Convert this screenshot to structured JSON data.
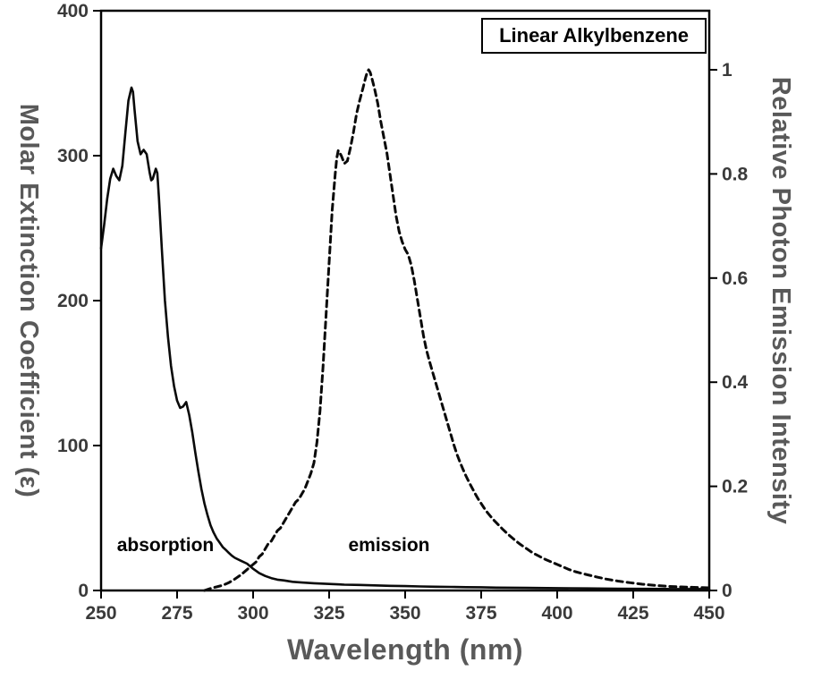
{
  "chart_data": {
    "type": "line",
    "title_box": "Linear Alkylbenzene",
    "xlabel": "Wavelength (nm)",
    "ylabel_left": "Molar Extinction Coefficient (ε)",
    "ylabel_right": "Relative Photon Emission Intensity",
    "xlim": [
      250,
      450
    ],
    "ylim_left": [
      0,
      400
    ],
    "ylim_right": [
      0,
      1
    ],
    "x_ticks": [
      250,
      275,
      300,
      325,
      350,
      375,
      400,
      425,
      450
    ],
    "y_ticks_left": [
      0,
      100,
      200,
      300,
      400
    ],
    "y_ticks_right": [
      0,
      0.2,
      0.4,
      0.6,
      0.8,
      1
    ],
    "grid": "off",
    "legend_position": "top-right-inside",
    "annotations": [
      {
        "text": "absorption"
      },
      {
        "text": "emission"
      }
    ],
    "colors": {
      "line": "#0a0a0a",
      "axis_title": "#595959",
      "tick_label": "#3a3a3a",
      "border": "#000000"
    },
    "series": [
      {
        "name": "absorption",
        "axis": "left",
        "style": "solid",
        "points": [
          [
            250,
            236
          ],
          [
            251,
            252
          ],
          [
            252,
            270
          ],
          [
            253,
            284
          ],
          [
            254,
            291
          ],
          [
            255,
            286
          ],
          [
            256,
            283
          ],
          [
            257,
            293
          ],
          [
            258,
            316
          ],
          [
            259,
            338
          ],
          [
            260,
            347
          ],
          [
            260.5,
            344
          ],
          [
            261,
            332
          ],
          [
            262,
            310
          ],
          [
            263,
            301
          ],
          [
            264,
            304
          ],
          [
            265,
            301
          ],
          [
            266,
            288
          ],
          [
            266.5,
            283
          ],
          [
            267,
            284
          ],
          [
            268,
            291
          ],
          [
            268.5,
            288
          ],
          [
            269,
            272
          ],
          [
            270,
            235
          ],
          [
            271,
            200
          ],
          [
            272,
            175
          ],
          [
            273,
            155
          ],
          [
            274,
            141
          ],
          [
            275,
            131
          ],
          [
            276,
            126
          ],
          [
            277,
            127
          ],
          [
            278,
            130
          ],
          [
            279,
            121
          ],
          [
            280,
            109
          ],
          [
            281,
            95
          ],
          [
            282,
            82
          ],
          [
            283,
            70
          ],
          [
            284,
            60
          ],
          [
            285,
            52
          ],
          [
            286,
            45
          ],
          [
            287,
            40
          ],
          [
            288,
            36
          ],
          [
            289,
            33
          ],
          [
            290,
            30
          ],
          [
            291,
            28
          ],
          [
            292,
            26
          ],
          [
            293,
            24
          ],
          [
            294,
            22.5
          ],
          [
            296,
            20.5
          ],
          [
            298,
            18.5
          ],
          [
            300,
            15
          ],
          [
            302,
            12
          ],
          [
            304,
            10
          ],
          [
            306,
            8.5
          ],
          [
            308,
            7.5
          ],
          [
            310,
            7
          ],
          [
            313,
            6
          ],
          [
            316,
            5.5
          ],
          [
            320,
            5
          ],
          [
            325,
            4.5
          ],
          [
            330,
            4
          ],
          [
            335,
            3.8
          ],
          [
            340,
            3.5
          ],
          [
            345,
            3.2
          ],
          [
            350,
            3
          ],
          [
            355,
            2.8
          ],
          [
            360,
            2.6
          ],
          [
            365,
            2.5
          ],
          [
            370,
            2.3
          ],
          [
            375,
            2.2
          ],
          [
            380,
            2
          ],
          [
            390,
            1.8
          ],
          [
            400,
            1.6
          ],
          [
            410,
            1.4
          ],
          [
            420,
            1.2
          ],
          [
            430,
            1.1
          ],
          [
            440,
            1
          ],
          [
            450,
            1
          ]
        ]
      },
      {
        "name": "emission",
        "axis": "right",
        "style": "dashed",
        "points": [
          [
            284,
            0
          ],
          [
            286,
            0.004
          ],
          [
            288,
            0.007
          ],
          [
            290,
            0.01
          ],
          [
            292,
            0.015
          ],
          [
            294,
            0.022
          ],
          [
            296,
            0.03
          ],
          [
            298,
            0.04
          ],
          [
            300,
            0.05
          ],
          [
            301,
            0.055
          ],
          [
            302,
            0.065
          ],
          [
            303,
            0.07
          ],
          [
            304,
            0.08
          ],
          [
            305,
            0.09
          ],
          [
            306,
            0.095
          ],
          [
            307,
            0.105
          ],
          [
            308,
            0.115
          ],
          [
            309,
            0.12
          ],
          [
            310,
            0.13
          ],
          [
            311,
            0.14
          ],
          [
            312,
            0.15
          ],
          [
            313,
            0.16
          ],
          [
            314,
            0.17
          ],
          [
            315,
            0.175
          ],
          [
            316,
            0.185
          ],
          [
            317,
            0.195
          ],
          [
            318,
            0.21
          ],
          [
            319,
            0.225
          ],
          [
            320,
            0.245
          ],
          [
            321,
            0.285
          ],
          [
            322,
            0.345
          ],
          [
            323,
            0.43
          ],
          [
            324,
            0.53
          ],
          [
            325,
            0.63
          ],
          [
            326,
            0.73
          ],
          [
            327,
            0.8
          ],
          [
            327.5,
            0.83
          ],
          [
            328,
            0.845
          ],
          [
            329,
            0.835
          ],
          [
            330,
            0.82
          ],
          [
            331,
            0.825
          ],
          [
            332,
            0.85
          ],
          [
            333,
            0.88
          ],
          [
            334,
            0.915
          ],
          [
            335,
            0.94
          ],
          [
            336,
            0.962
          ],
          [
            337,
            0.985
          ],
          [
            337.5,
            0.995
          ],
          [
            338,
            1
          ],
          [
            338.5,
            0.995
          ],
          [
            339,
            0.985
          ],
          [
            340,
            0.962
          ],
          [
            341,
            0.935
          ],
          [
            342,
            0.9
          ],
          [
            343,
            0.87
          ],
          [
            344,
            0.84
          ],
          [
            345,
            0.8
          ],
          [
            346,
            0.76
          ],
          [
            347,
            0.72
          ],
          [
            348,
            0.69
          ],
          [
            349,
            0.67
          ],
          [
            350,
            0.655
          ],
          [
            351,
            0.645
          ],
          [
            352,
            0.625
          ],
          [
            353,
            0.595
          ],
          [
            354,
            0.56
          ],
          [
            355,
            0.525
          ],
          [
            356,
            0.49
          ],
          [
            357,
            0.462
          ],
          [
            358,
            0.44
          ],
          [
            359,
            0.42
          ],
          [
            360,
            0.4
          ],
          [
            361,
            0.38
          ],
          [
            362,
            0.36
          ],
          [
            363,
            0.34
          ],
          [
            364,
            0.32
          ],
          [
            365,
            0.3
          ],
          [
            366,
            0.28
          ],
          [
            367,
            0.262
          ],
          [
            368,
            0.247
          ],
          [
            369,
            0.233
          ],
          [
            370,
            0.22
          ],
          [
            371,
            0.208
          ],
          [
            372,
            0.197
          ],
          [
            373,
            0.186
          ],
          [
            374,
            0.176
          ],
          [
            375,
            0.167
          ],
          [
            376,
            0.158
          ],
          [
            377,
            0.15
          ],
          [
            378,
            0.143
          ],
          [
            379,
            0.136
          ],
          [
            380,
            0.13
          ],
          [
            382,
            0.118
          ],
          [
            384,
            0.107
          ],
          [
            386,
            0.097
          ],
          [
            388,
            0.088
          ],
          [
            390,
            0.08
          ],
          [
            392,
            0.072
          ],
          [
            394,
            0.066
          ],
          [
            396,
            0.06
          ],
          [
            398,
            0.055
          ],
          [
            400,
            0.05
          ],
          [
            402,
            0.045
          ],
          [
            404,
            0.04
          ],
          [
            406,
            0.036
          ],
          [
            408,
            0.033
          ],
          [
            410,
            0.03
          ],
          [
            413,
            0.026
          ],
          [
            416,
            0.022
          ],
          [
            420,
            0.018
          ],
          [
            424,
            0.015
          ],
          [
            428,
            0.012
          ],
          [
            432,
            0.01
          ],
          [
            436,
            0.008
          ],
          [
            440,
            0.007
          ],
          [
            445,
            0.006
          ],
          [
            450,
            0.005
          ]
        ]
      }
    ]
  }
}
